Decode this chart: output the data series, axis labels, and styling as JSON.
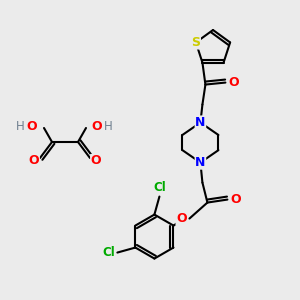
{
  "background_color": "#ebebeb",
  "bond_color": "#000000",
  "atom_colors": {
    "S": "#cccc00",
    "N": "#0000ff",
    "O": "#ff0000",
    "Cl": "#00aa00",
    "H": "#708090",
    "C": "#000000"
  },
  "figsize": [
    3.0,
    3.0
  ],
  "dpi": 100
}
